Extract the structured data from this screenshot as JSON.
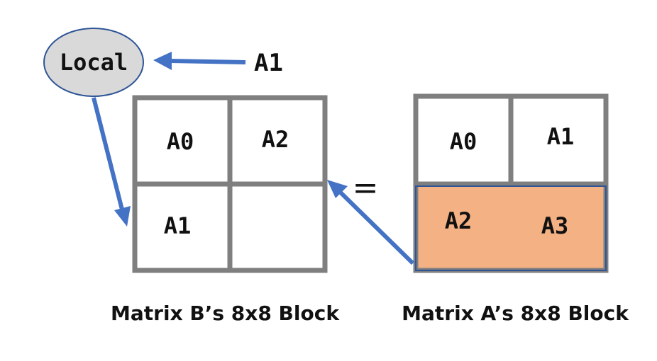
{
  "diagram": {
    "local_label": "Local",
    "incoming_label": "A1",
    "equals_sign": "=",
    "matrix_b": {
      "caption": "Matrix B’s 8x8 Block",
      "cells": {
        "top_left": "A0",
        "top_right": "A2",
        "bottom_left": "A1",
        "bottom_right": ""
      }
    },
    "matrix_a": {
      "caption": "Matrix A’s 8x8 Block",
      "cells": {
        "top_left": "A0",
        "top_right": "A1",
        "bottom_left": "A2",
        "bottom_right": "A3"
      },
      "highlight_color": "#f4b183"
    },
    "colors": {
      "arrow": "#4472c4",
      "grid": "#7f7f7f",
      "local_fill": "#d9d9d9",
      "highlight_border": "#2f5597"
    }
  }
}
